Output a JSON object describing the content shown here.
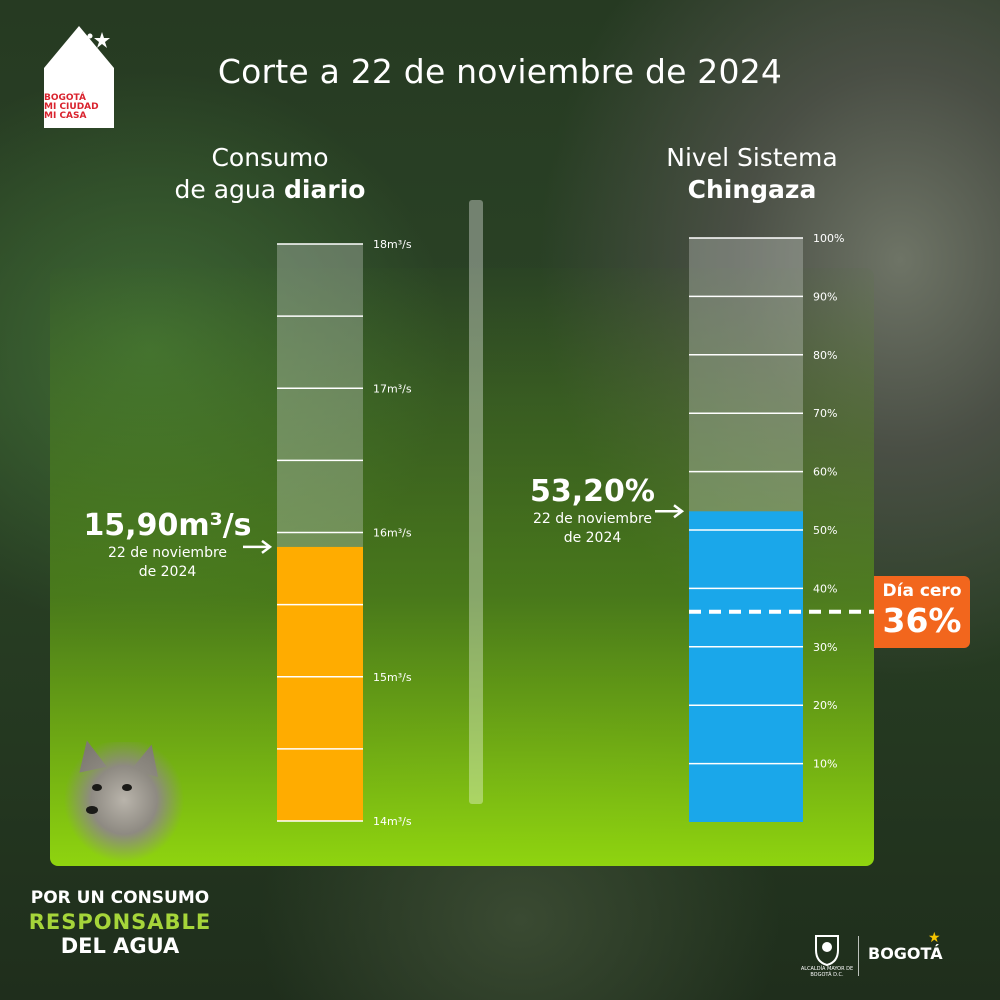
{
  "header": {
    "title": "Corte a 22 de noviembre de 2024",
    "logo": {
      "lines": [
        "BOGOTÁ",
        "MI CIUDAD",
        "MI CASA"
      ],
      "brand_red": "#d9232e"
    }
  },
  "left_column": {
    "title_line1": "Consumo",
    "title_line2_regular": "de agua ",
    "title_line2_bold": "diario",
    "callout_value": "15,90m³/s",
    "callout_date": "22 de noviembre\nde 2024"
  },
  "right_column": {
    "title_line1": "Nivel Sistema",
    "title_line2_bold": "Chingaza",
    "callout_value": "53,20%",
    "callout_date": "22 de noviembre\nde 2024"
  },
  "badge": {
    "label": "Día cero",
    "value": "36%",
    "color": "#f2661d"
  },
  "slogan": {
    "line1": "POR UN CONSUMO",
    "line2": "RESPONSABLE",
    "line3": "DEL AGUA"
  },
  "footer": {
    "seal_text": "ALCALDÍA MAYOR DE BOGOTÁ D.C.",
    "brand": "BOGOTÁ"
  },
  "chart_data": [
    {
      "type": "bar",
      "unit": "m³/s",
      "categories": [
        "22 de noviembre de 2024"
      ],
      "values": [
        15.9
      ],
      "ylim": [
        14,
        18
      ],
      "ticks": [
        {
          "value": 14,
          "label": "14m³/s"
        },
        {
          "value": 15,
          "label": "15m³/s"
        },
        {
          "value": 16,
          "label": "16m³/s"
        },
        {
          "value": 17,
          "label": "17m³/s"
        },
        {
          "value": 18,
          "label": "18m³/s"
        }
      ],
      "gridlines": [
        14,
        14.5,
        15,
        15.5,
        16,
        16.5,
        17,
        17.5,
        18
      ],
      "bar_color": "#ffac00",
      "annotation": "15,90m³/s"
    },
    {
      "type": "bar",
      "unit": "%",
      "categories": [
        "22 de noviembre de 2024"
      ],
      "values": [
        53.2
      ],
      "ylim": [
        0,
        100
      ],
      "ticks": [
        {
          "value": 10,
          "label": "10%"
        },
        {
          "value": 20,
          "label": "20%"
        },
        {
          "value": 30,
          "label": "30%"
        },
        {
          "value": 40,
          "label": "40%"
        },
        {
          "value": 50,
          "label": "50%"
        },
        {
          "value": 60,
          "label": "60%"
        },
        {
          "value": 70,
          "label": "70%"
        },
        {
          "value": 80,
          "label": "80%"
        },
        {
          "value": 90,
          "label": "90%"
        },
        {
          "value": 100,
          "label": "100%"
        }
      ],
      "gridlines": [
        10,
        20,
        30,
        40,
        50,
        60,
        70,
        80,
        90,
        100
      ],
      "bar_color": "#1aa7ea",
      "threshold": {
        "value": 36,
        "label": "Día cero",
        "style": "dashed"
      },
      "annotation": "53,20%"
    }
  ]
}
